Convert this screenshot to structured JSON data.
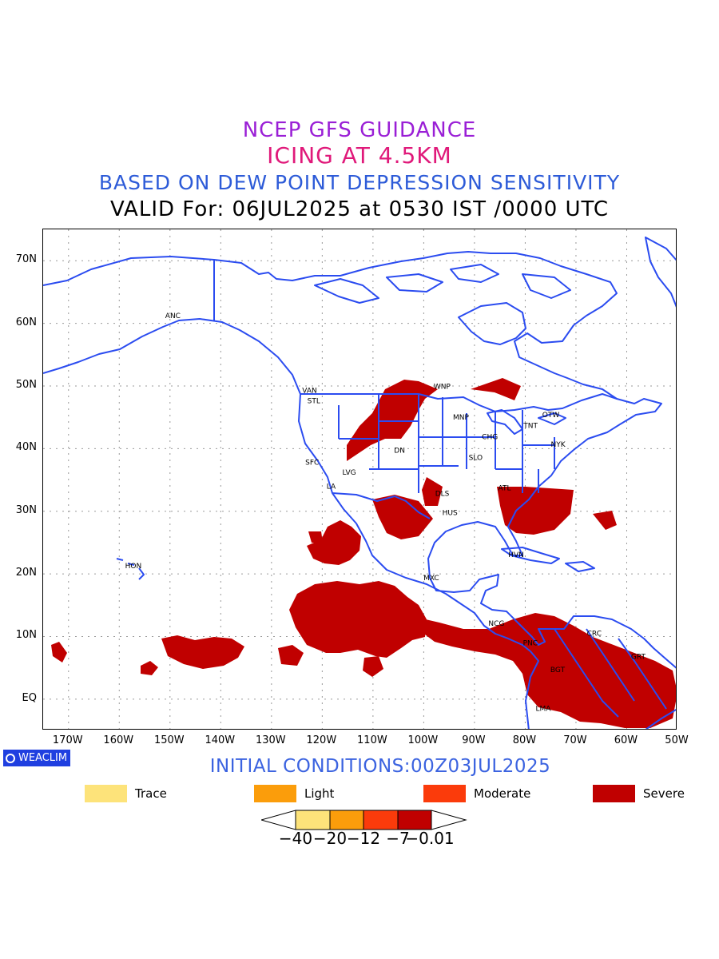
{
  "header": {
    "line1": "NCEP GFS GUIDANCE",
    "line2": "ICING AT 4.5KM",
    "line3": "BASED ON DEW POINT DEPRESSION SENSITIVITY",
    "line4": "VALID For: 06JUL2025 at 0530 IST /0000 UTC"
  },
  "axes": {
    "lat_labels": [
      "70N",
      "60N",
      "50N",
      "40N",
      "30N",
      "20N",
      "10N",
      "EQ"
    ],
    "lon_labels": [
      "170W",
      "160W",
      "150W",
      "140W",
      "130W",
      "120W",
      "110W",
      "100W",
      "90W",
      "80W",
      "70W",
      "60W",
      "50W"
    ]
  },
  "station_labels": [
    "ANC",
    "VAN",
    "STL",
    "SFC",
    "LVG",
    "LA",
    "DN",
    "WNP",
    "MNP",
    "CHG",
    "SLO",
    "OTW",
    "TNT",
    "NYK",
    "ATL",
    "HUS",
    "DLS",
    "HON",
    "HVN",
    "MXC",
    "NCG",
    "PNC",
    "CRC",
    "BGT",
    "GRT",
    "LMA"
  ],
  "brand": {
    "label": "WEACLIM"
  },
  "footer": {
    "initial_conditions": "INITIAL CONDITIONS:00Z03JUL2025"
  },
  "legend": [
    {
      "label": "Trace",
      "color": "#fde37a"
    },
    {
      "label": "Light",
      "color": "#fb9d0b"
    },
    {
      "label": "Moderate",
      "color": "#fb3b0b"
    },
    {
      "label": "Severe",
      "color": "#c00000"
    }
  ],
  "colorbar": {
    "colors": [
      "#fde37a",
      "#fb9d0b",
      "#fb3b0b",
      "#c00000"
    ],
    "ticks": [
      "−40",
      "−20",
      "−12",
      "−7",
      "−0.01"
    ]
  },
  "map_colors": {
    "coast": "#2b4cf0",
    "icing": "#c00000",
    "grid": "#9a9a9a"
  },
  "map_extent": {
    "lon_min": -175,
    "lon_max": -50,
    "lat_min": -5,
    "lat_max": 75
  }
}
